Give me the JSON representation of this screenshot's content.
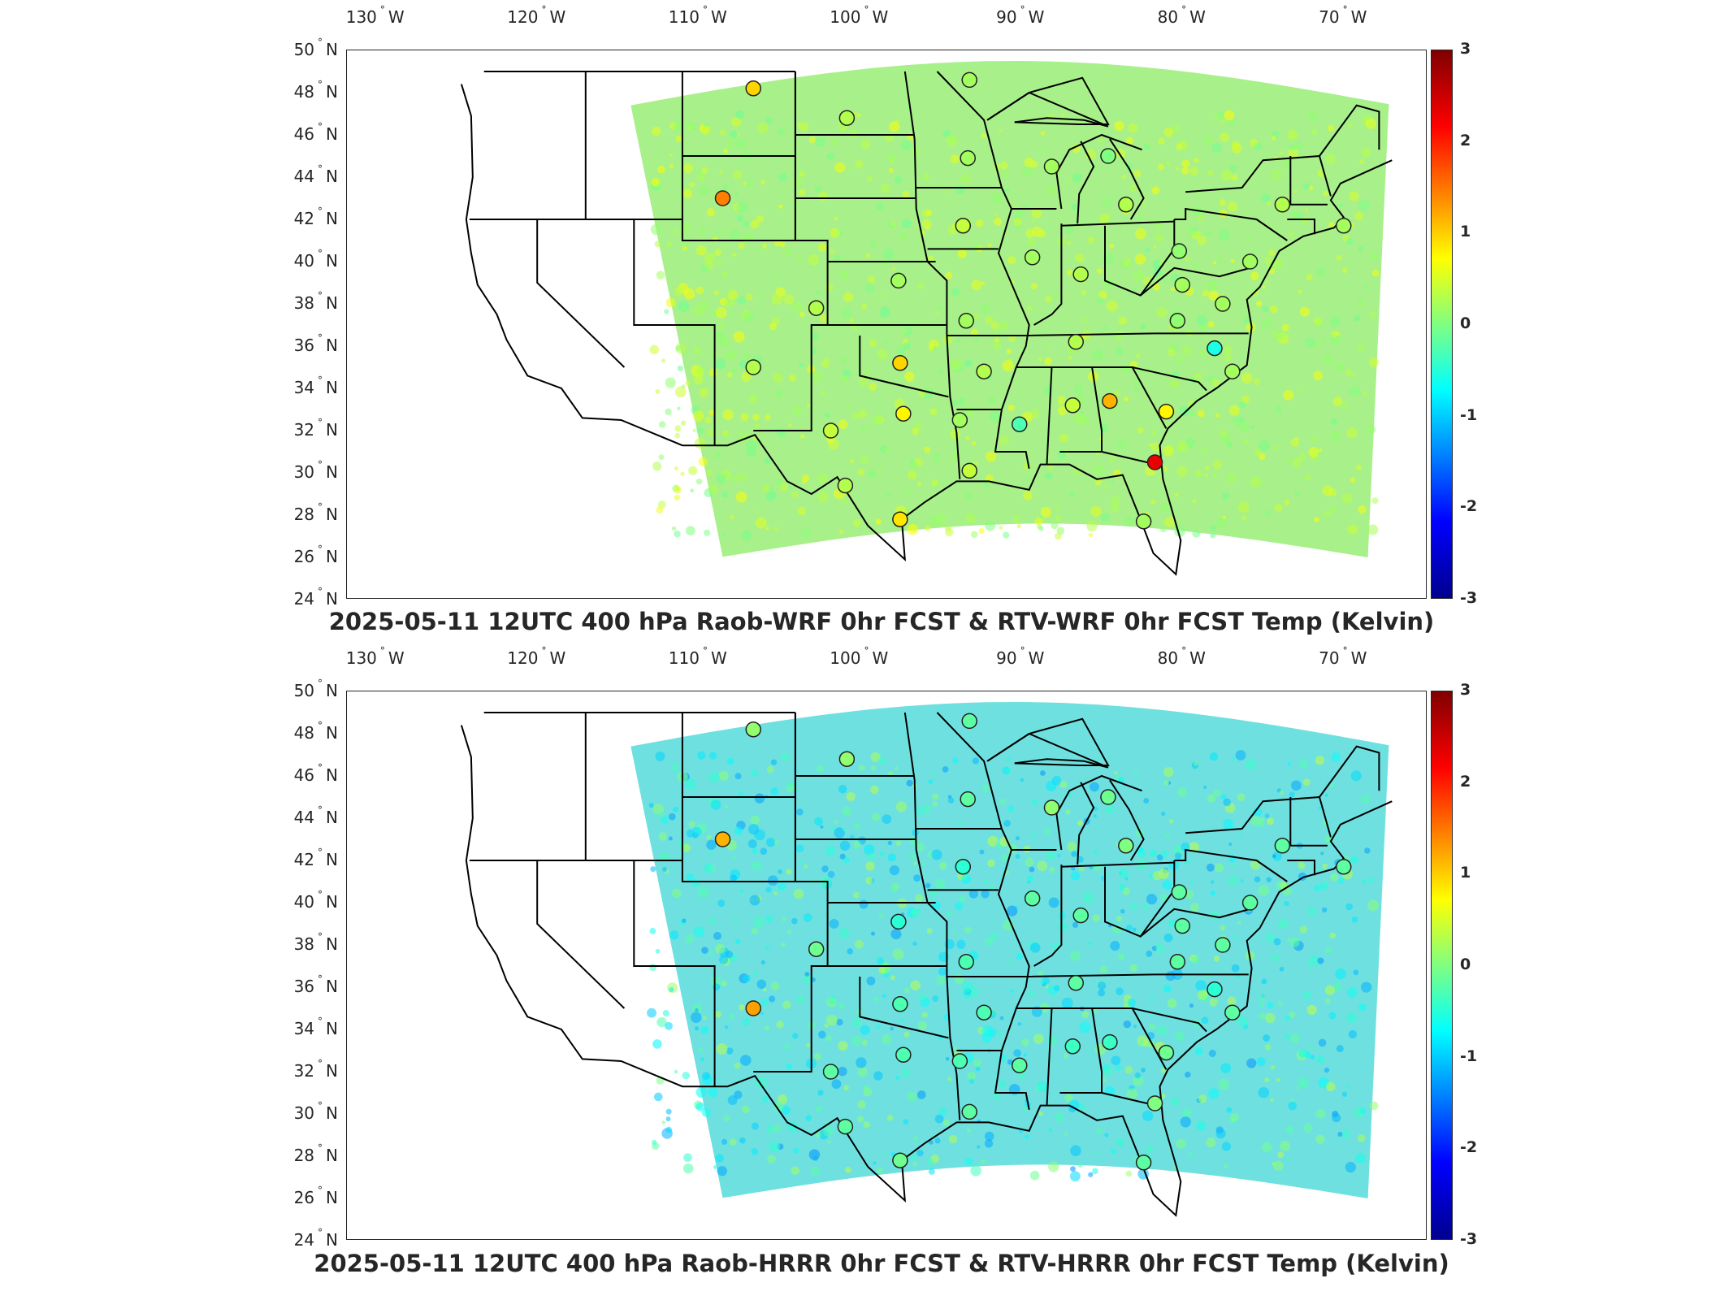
{
  "panels": [
    {
      "title": "2025-05-11 12UTC 400 hPa Raob-WRF 0hr FCST & RTV-WRF 0hr FCST Temp (Kelvin)",
      "lon_ticks": [
        {
          "deg": "130",
          "dir": "W"
        },
        {
          "deg": "120",
          "dir": "W"
        },
        {
          "deg": "110",
          "dir": "W"
        },
        {
          "deg": "100",
          "dir": "W"
        },
        {
          "deg": "90",
          "dir": "W"
        },
        {
          "deg": "80",
          "dir": "W"
        },
        {
          "deg": "70",
          "dir": "W"
        }
      ],
      "lat_ticks": [
        {
          "deg": "50",
          "dir": "N"
        },
        {
          "deg": "48",
          "dir": "N"
        },
        {
          "deg": "46",
          "dir": "N"
        },
        {
          "deg": "44",
          "dir": "N"
        },
        {
          "deg": "42",
          "dir": "N"
        },
        {
          "deg": "40",
          "dir": "N"
        },
        {
          "deg": "38",
          "dir": "N"
        },
        {
          "deg": "36",
          "dir": "N"
        },
        {
          "deg": "34",
          "dir": "N"
        },
        {
          "deg": "32",
          "dir": "N"
        },
        {
          "deg": "30",
          "dir": "N"
        },
        {
          "deg": "28",
          "dir": "N"
        },
        {
          "deg": "26",
          "dir": "N"
        },
        {
          "deg": "24",
          "dir": "N"
        }
      ],
      "colorbar_ticks": [
        "3",
        "2",
        "1",
        "0",
        "-1",
        "-2",
        "-3"
      ],
      "field_tone": "#a8f08a",
      "stations": [
        {
          "lon": -106.6,
          "lat": 48.2,
          "v": 1.0
        },
        {
          "lon": -100.8,
          "lat": 46.8,
          "v": 0.3
        },
        {
          "lon": -93.3,
          "lat": 44.9,
          "v": 0.2
        },
        {
          "lon": -108.5,
          "lat": 43.0,
          "v": 1.5
        },
        {
          "lon": -88.1,
          "lat": 44.5,
          "v": 0.2
        },
        {
          "lon": -84.6,
          "lat": 45.0,
          "v": 0.0
        },
        {
          "lon": -83.5,
          "lat": 42.7,
          "v": 0.3
        },
        {
          "lon": -93.6,
          "lat": 41.7,
          "v": 0.4
        },
        {
          "lon": -89.3,
          "lat": 40.2,
          "v": 0.2
        },
        {
          "lon": -86.3,
          "lat": 39.4,
          "v": 0.3
        },
        {
          "lon": -80.2,
          "lat": 40.5,
          "v": 0.1
        },
        {
          "lon": -75.8,
          "lat": 40.0,
          "v": 0.2
        },
        {
          "lon": -97.6,
          "lat": 39.1,
          "v": 0.2
        },
        {
          "lon": -102.7,
          "lat": 37.8,
          "v": 0.3
        },
        {
          "lon": -93.4,
          "lat": 37.2,
          "v": 0.2
        },
        {
          "lon": -86.6,
          "lat": 36.2,
          "v": 0.3
        },
        {
          "lon": -80.3,
          "lat": 37.2,
          "v": 0.1
        },
        {
          "lon": -78.0,
          "lat": 35.9,
          "v": -0.6
        },
        {
          "lon": -76.9,
          "lat": 34.8,
          "v": 0.2
        },
        {
          "lon": -97.5,
          "lat": 35.2,
          "v": 1.0
        },
        {
          "lon": -92.3,
          "lat": 34.8,
          "v": 0.3
        },
        {
          "lon": -106.6,
          "lat": 35.0,
          "v": 0.3
        },
        {
          "lon": -101.8,
          "lat": 32.0,
          "v": 0.4
        },
        {
          "lon": -97.3,
          "lat": 32.8,
          "v": 0.8
        },
        {
          "lon": -93.8,
          "lat": 32.5,
          "v": 0.2
        },
        {
          "lon": -90.1,
          "lat": 32.3,
          "v": -0.3
        },
        {
          "lon": -86.8,
          "lat": 33.2,
          "v": 0.4
        },
        {
          "lon": -84.5,
          "lat": 33.4,
          "v": 1.2
        },
        {
          "lon": -81.0,
          "lat": 32.9,
          "v": 0.8
        },
        {
          "lon": -81.7,
          "lat": 30.5,
          "v": 2.4
        },
        {
          "lon": -100.9,
          "lat": 29.4,
          "v": 0.3
        },
        {
          "lon": -97.5,
          "lat": 27.8,
          "v": 0.9
        },
        {
          "lon": -93.2,
          "lat": 30.1,
          "v": 0.4
        },
        {
          "lon": -82.4,
          "lat": 27.7,
          "v": 0.2
        },
        {
          "lon": -80.0,
          "lat": 38.9,
          "v": 0.2
        },
        {
          "lon": -77.5,
          "lat": 38.0,
          "v": 0.2
        },
        {
          "lon": -73.8,
          "lat": 42.7,
          "v": 0.3
        },
        {
          "lon": -70.0,
          "lat": 41.7,
          "v": 0.2
        },
        {
          "lon": -93.2,
          "lat": 48.6,
          "v": 0.2
        }
      ]
    },
    {
      "title": "2025-05-11 12UTC 400 hPa Raob-HRRR 0hr FCST & RTV-HRRR 0hr FCST Temp (Kelvin)",
      "lon_ticks": [
        {
          "deg": "130",
          "dir": "W"
        },
        {
          "deg": "120",
          "dir": "W"
        },
        {
          "deg": "110",
          "dir": "W"
        },
        {
          "deg": "100",
          "dir": "W"
        },
        {
          "deg": "90",
          "dir": "W"
        },
        {
          "deg": "80",
          "dir": "W"
        },
        {
          "deg": "70",
          "dir": "W"
        }
      ],
      "lat_ticks": [
        {
          "deg": "50",
          "dir": "N"
        },
        {
          "deg": "48",
          "dir": "N"
        },
        {
          "deg": "46",
          "dir": "N"
        },
        {
          "deg": "44",
          "dir": "N"
        },
        {
          "deg": "42",
          "dir": "N"
        },
        {
          "deg": "40",
          "dir": "N"
        },
        {
          "deg": "38",
          "dir": "N"
        },
        {
          "deg": "36",
          "dir": "N"
        },
        {
          "deg": "34",
          "dir": "N"
        },
        {
          "deg": "32",
          "dir": "N"
        },
        {
          "deg": "30",
          "dir": "N"
        },
        {
          "deg": "28",
          "dir": "N"
        },
        {
          "deg": "26",
          "dir": "N"
        },
        {
          "deg": "24",
          "dir": "N"
        }
      ],
      "colorbar_ticks": [
        "3",
        "2",
        "1",
        "0",
        "-1",
        "-2",
        "-3"
      ],
      "field_tone": "#6fe0e0",
      "stations": [
        {
          "lon": -106.6,
          "lat": 48.2,
          "v": 0.1
        },
        {
          "lon": -100.8,
          "lat": 46.8,
          "v": 0.1
        },
        {
          "lon": -93.3,
          "lat": 44.9,
          "v": -0.2
        },
        {
          "lon": -108.5,
          "lat": 43.0,
          "v": 1.2
        },
        {
          "lon": -88.1,
          "lat": 44.5,
          "v": 0.1
        },
        {
          "lon": -84.6,
          "lat": 45.0,
          "v": -0.1
        },
        {
          "lon": -83.5,
          "lat": 42.7,
          "v": 0.0
        },
        {
          "lon": -93.6,
          "lat": 41.7,
          "v": -0.5
        },
        {
          "lon": -89.3,
          "lat": 40.2,
          "v": -0.2
        },
        {
          "lon": -86.3,
          "lat": 39.4,
          "v": -0.2
        },
        {
          "lon": -80.2,
          "lat": 40.5,
          "v": -0.2
        },
        {
          "lon": -75.8,
          "lat": 40.0,
          "v": -0.2
        },
        {
          "lon": -97.6,
          "lat": 39.1,
          "v": -0.5
        },
        {
          "lon": -102.7,
          "lat": 37.8,
          "v": -0.1
        },
        {
          "lon": -93.4,
          "lat": 37.2,
          "v": -0.3
        },
        {
          "lon": -86.6,
          "lat": 36.2,
          "v": -0.2
        },
        {
          "lon": -80.3,
          "lat": 37.2,
          "v": -0.2
        },
        {
          "lon": -78.0,
          "lat": 35.9,
          "v": -0.5
        },
        {
          "lon": -76.9,
          "lat": 34.8,
          "v": -0.2
        },
        {
          "lon": -97.5,
          "lat": 35.2,
          "v": -0.3
        },
        {
          "lon": -92.3,
          "lat": 34.8,
          "v": -0.3
        },
        {
          "lon": -106.6,
          "lat": 35.0,
          "v": 1.3
        },
        {
          "lon": -101.8,
          "lat": 32.0,
          "v": -0.2
        },
        {
          "lon": -97.3,
          "lat": 32.8,
          "v": -0.3
        },
        {
          "lon": -93.8,
          "lat": 32.5,
          "v": -0.3
        },
        {
          "lon": -90.1,
          "lat": 32.3,
          "v": -0.2
        },
        {
          "lon": -86.8,
          "lat": 33.2,
          "v": -0.4
        },
        {
          "lon": -84.5,
          "lat": 33.4,
          "v": -0.4
        },
        {
          "lon": -81.0,
          "lat": 32.9,
          "v": -0.1
        },
        {
          "lon": -81.7,
          "lat": 30.5,
          "v": 0.0
        },
        {
          "lon": -100.9,
          "lat": 29.4,
          "v": -0.2
        },
        {
          "lon": -97.5,
          "lat": 27.8,
          "v": -0.1
        },
        {
          "lon": -93.2,
          "lat": 30.1,
          "v": -0.2
        },
        {
          "lon": -82.4,
          "lat": 27.7,
          "v": -0.2
        },
        {
          "lon": -80.0,
          "lat": 38.9,
          "v": -0.2
        },
        {
          "lon": -77.5,
          "lat": 38.0,
          "v": -0.2
        },
        {
          "lon": -73.8,
          "lat": 42.7,
          "v": -0.2
        },
        {
          "lon": -70.0,
          "lat": 41.7,
          "v": -0.2
        },
        {
          "lon": -93.2,
          "lat": 48.6,
          "v": -0.2
        }
      ]
    }
  ]
}
